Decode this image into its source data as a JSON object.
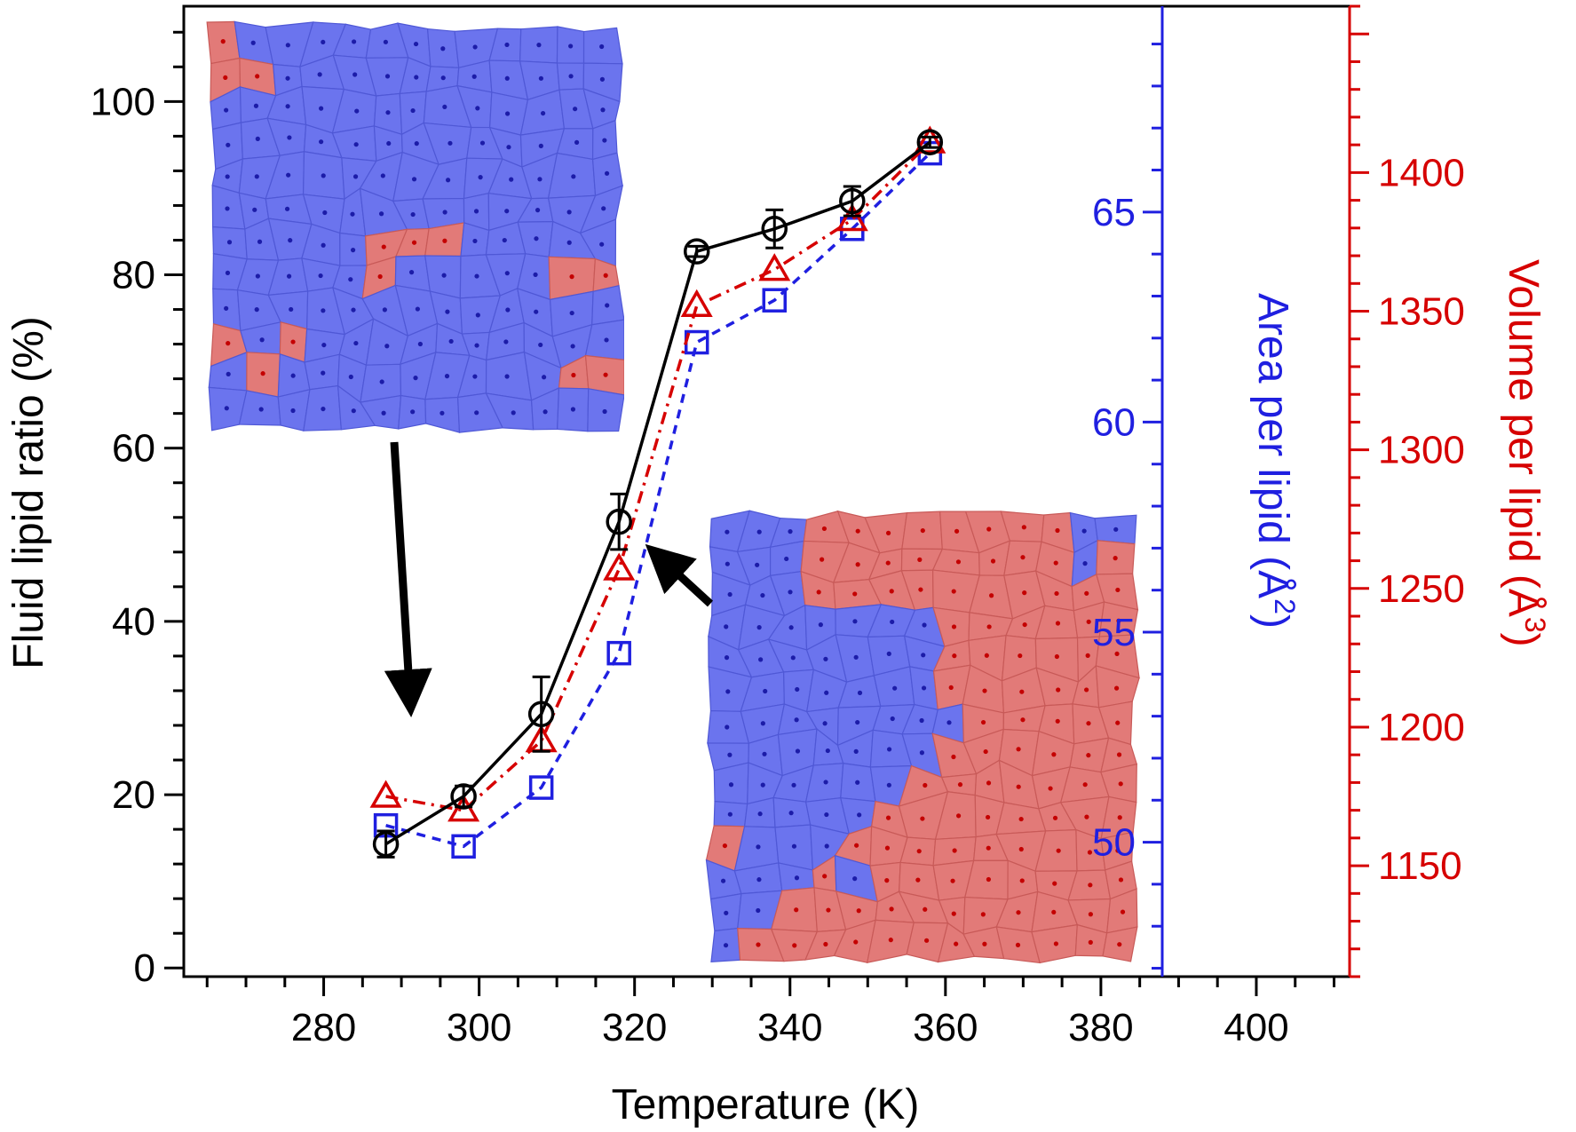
{
  "chart_data": {
    "type": "line",
    "title": "",
    "xlabel": "Temperature (K)",
    "xlim": [
      262,
      412
    ],
    "xticks": [
      280,
      300,
      320,
      340,
      360,
      380,
      400
    ],
    "axes": {
      "left": {
        "label": "Fluid lipid ratio (%)",
        "color": "#000000",
        "ylim": [
          -1,
          111
        ],
        "ticks": [
          0,
          20,
          40,
          60,
          80,
          100
        ]
      },
      "right_inner": {
        "label_main": "Area per lipid (",
        "label_unit": "Å",
        "label_sup": "2",
        "label_close": ")",
        "color": "#1f1fe0",
        "ylim": [
          46.8,
          69.9
        ],
        "ticks": [
          50,
          55,
          60,
          65
        ]
      },
      "right_outer": {
        "label_main": "Volume per lipid (",
        "label_unit": "Å",
        "label_sup": "3",
        "label_close": ")",
        "color": "#d60000",
        "ylim": [
          1110,
          1460
        ],
        "ticks": [
          1150,
          1200,
          1250,
          1300,
          1350,
          1400
        ]
      }
    },
    "series": [
      {
        "name": "Fluid lipid ratio",
        "axis": "left",
        "color": "#000000",
        "marker": "circle",
        "line": "solid",
        "x": [
          288,
          298,
          308,
          318,
          328,
          338,
          348,
          358
        ],
        "y": [
          14.3,
          19.8,
          29.3,
          51.5,
          82.7,
          85.3,
          88.5,
          95.3
        ],
        "error": [
          1.5,
          1.2,
          4.3,
          3.2,
          0.6,
          2.2,
          1.7,
          0.6
        ]
      },
      {
        "name": "Area per lipid",
        "axis": "right_inner",
        "color": "#1f1fe0",
        "marker": "square",
        "line": "dashed",
        "x": [
          288,
          298,
          308,
          318,
          328,
          338,
          348,
          358
        ],
        "y": [
          50.4,
          49.9,
          51.3,
          54.5,
          61.9,
          62.9,
          64.6,
          66.4
        ]
      },
      {
        "name": "Volume per lipid",
        "axis": "right_outer",
        "color": "#d60000",
        "marker": "triangle",
        "line": "dashdot",
        "x": [
          288,
          298,
          308,
          318,
          328,
          338,
          348,
          358
        ],
        "y": [
          1175,
          1170,
          1195,
          1257,
          1352,
          1365,
          1383,
          1411
        ]
      }
    ],
    "annotations": [
      {
        "type": "arrow",
        "description": "from upper inset toward 288 K point"
      },
      {
        "type": "arrow",
        "description": "from lower inset toward 320 K point"
      },
      {
        "type": "inset",
        "description": "Voronoi lipid map, mostly gel (blue) with few fluid (red) cells"
      },
      {
        "type": "inset",
        "description": "Voronoi lipid map, mixed gel (blue) and fluid (red) domains"
      }
    ]
  },
  "colors": {
    "gel": "#6b74ee",
    "fluid": "#e27a78",
    "gel_dot": "#1c1ca8",
    "fluid_dot": "#c40000"
  }
}
